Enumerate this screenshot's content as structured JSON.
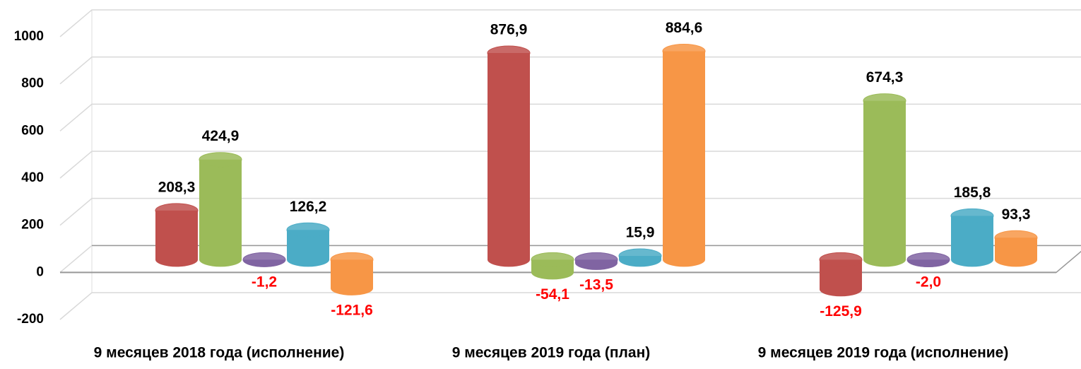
{
  "chart_data": {
    "type": "bar3d",
    "categories": [
      "9 месяцев 2018 года (исполнение)",
      "9 месяцев 2019 года (план)",
      "9 месяцев  2019 года (исполнение)"
    ],
    "series": [
      {
        "color": "#c0504d",
        "values": [
          208.3,
          876.9,
          -125.9
        ],
        "value_labels": [
          "208,3",
          "876,9",
          "-125,9"
        ]
      },
      {
        "color": "#9bbb59",
        "values": [
          424.9,
          -54.1,
          674.3
        ],
        "value_labels": [
          "424,9",
          "-54,1",
          "674,3"
        ]
      },
      {
        "color": "#8064a2",
        "values": [
          -1.2,
          -13.5,
          -2.0
        ],
        "value_labels": [
          "-1,2",
          "-13,5",
          "-2,0"
        ]
      },
      {
        "color": "#4bacc6",
        "values": [
          126.2,
          15.9,
          185.8
        ],
        "value_labels": [
          "126,2",
          "15,9",
          "185,8"
        ]
      },
      {
        "color": "#f79646",
        "values": [
          -121.6,
          884.6,
          93.3
        ],
        "value_labels": [
          "-121,6",
          "884,6",
          "93,3"
        ]
      }
    ],
    "ylim": [
      -200,
      1000
    ],
    "yticks": [
      -200,
      0,
      200,
      400,
      600,
      800,
      1000
    ],
    "grid": true,
    "label_color": "#000000",
    "negative_label_color": "#ff0000"
  }
}
